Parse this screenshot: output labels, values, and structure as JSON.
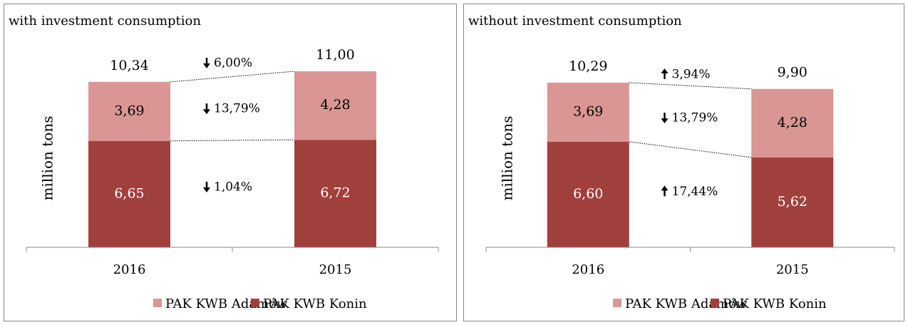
{
  "chart_data": [
    {
      "type": "stacked-bar",
      "title": "with investment consumption",
      "y_label": "million tons",
      "categories": [
        "2016",
        "2015"
      ],
      "series": [
        {
          "name": "PAK KWB Adamów",
          "color": "#d99694",
          "values": [
            3.69,
            4.28
          ],
          "value_labels": [
            "3,69",
            "4,28"
          ]
        },
        {
          "name": "PAK KWB Konin",
          "color": "#a0403d",
          "values": [
            6.65,
            6.72
          ],
          "value_labels": [
            "6,65",
            "6,72"
          ]
        }
      ],
      "totals": [
        10.34,
        11.0
      ],
      "total_labels": [
        "10,34",
        "11,00"
      ],
      "changes": [
        {
          "label": "6,00%",
          "direction": "down"
        },
        {
          "label": "13,79%",
          "direction": "down"
        },
        {
          "label": "1,04%",
          "direction": "down"
        }
      ],
      "ylim": [
        0,
        12
      ],
      "legend": "bottom"
    },
    {
      "type": "stacked-bar",
      "title": "without investment consumption",
      "y_label": "million tons",
      "categories": [
        "2016",
        "2015"
      ],
      "series": [
        {
          "name": "PAK KWB Adamów",
          "color": "#d99694",
          "values": [
            3.69,
            4.28
          ],
          "value_labels": [
            "3,69",
            "4,28"
          ]
        },
        {
          "name": "PAK KWB Konin",
          "color": "#a0403d",
          "values": [
            6.6,
            5.62
          ],
          "value_labels": [
            "6,60",
            "5,62"
          ]
        }
      ],
      "totals": [
        10.29,
        9.9
      ],
      "total_labels": [
        "10,29",
        "9,90"
      ],
      "changes": [
        {
          "label": "3,94%",
          "direction": "up"
        },
        {
          "label": "13,79%",
          "direction": "down"
        },
        {
          "label": "17,44%",
          "direction": "up"
        }
      ],
      "ylim": [
        0,
        12
      ],
      "legend": "bottom"
    }
  ]
}
